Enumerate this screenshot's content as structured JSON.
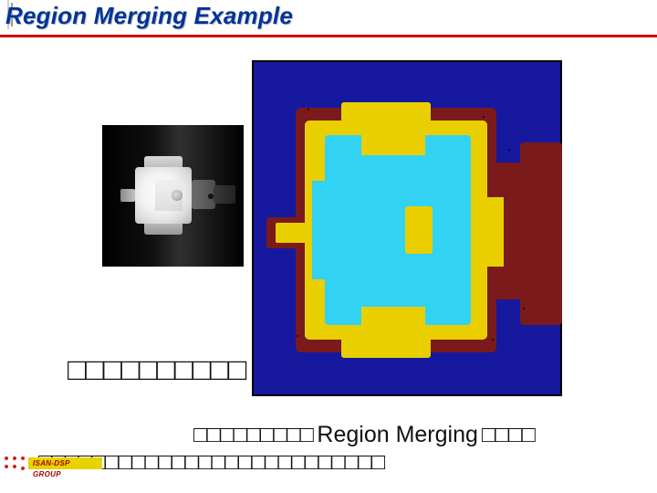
{
  "title": "Region Merging Example",
  "colors": {
    "title": "#003399",
    "rule": "#cc0000",
    "segmented_bg": "#16199e",
    "maroon": "#7a1a1a",
    "yellow": "#e9cf00",
    "cyan": "#32d2f2",
    "badge_bg": "#e6d400",
    "badge_text": "#aa0000",
    "dot": "#d41f1f"
  },
  "left_image": {
    "desc": "grayscale X-ray like image of a mechanical spool on black"
  },
  "right_image": {
    "type": "segmented",
    "regions": [
      "blue-background",
      "maroon-border",
      "yellow-mid",
      "cyan-core"
    ],
    "edge_speckle": true
  },
  "captions": {
    "line1_boxes": "□□□□□□□□□□",
    "line2_pre_boxes": "□□□□□□□□□",
    "line2_mid": "Region Merging",
    "line2_post_boxes": "□□□□",
    "line3_boxes": "□□□□□□□□□□□□□□□□□□□□□□□□□□"
  },
  "footer": {
    "group": "ISAN-DSP GROUP"
  }
}
